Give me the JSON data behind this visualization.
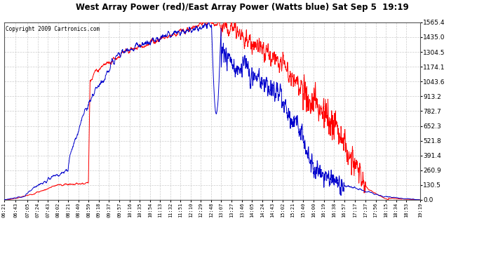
{
  "title": "West Array Power (red)/East Array Power (Watts blue) Sat Sep 5  19:19",
  "copyright": "Copyright 2009 Cartronics.com",
  "background_color": "#ffffff",
  "plot_bg_color": "#ffffff",
  "grid_color": "#cccccc",
  "red_color": "#ff0000",
  "blue_color": "#0000cc",
  "y_ticks": [
    0.0,
    130.5,
    260.9,
    391.4,
    521.8,
    652.3,
    782.7,
    913.2,
    1043.6,
    1174.1,
    1304.5,
    1435.0,
    1565.4
  ],
  "x_labels": [
    "06:21",
    "06:43",
    "07:05",
    "07:24",
    "07:43",
    "08:02",
    "08:21",
    "08:40",
    "08:59",
    "09:18",
    "09:37",
    "09:57",
    "10:16",
    "10:35",
    "10:54",
    "11:13",
    "11:32",
    "11:51",
    "12:10",
    "12:29",
    "12:48",
    "13:07",
    "13:27",
    "13:46",
    "14:05",
    "14:24",
    "14:43",
    "15:02",
    "15:21",
    "15:40",
    "16:00",
    "16:19",
    "16:38",
    "16:57",
    "17:17",
    "17:37",
    "17:56",
    "18:15",
    "18:34",
    "18:53",
    "19:19"
  ],
  "ymax": 1565.4,
  "ymin": 0.0
}
